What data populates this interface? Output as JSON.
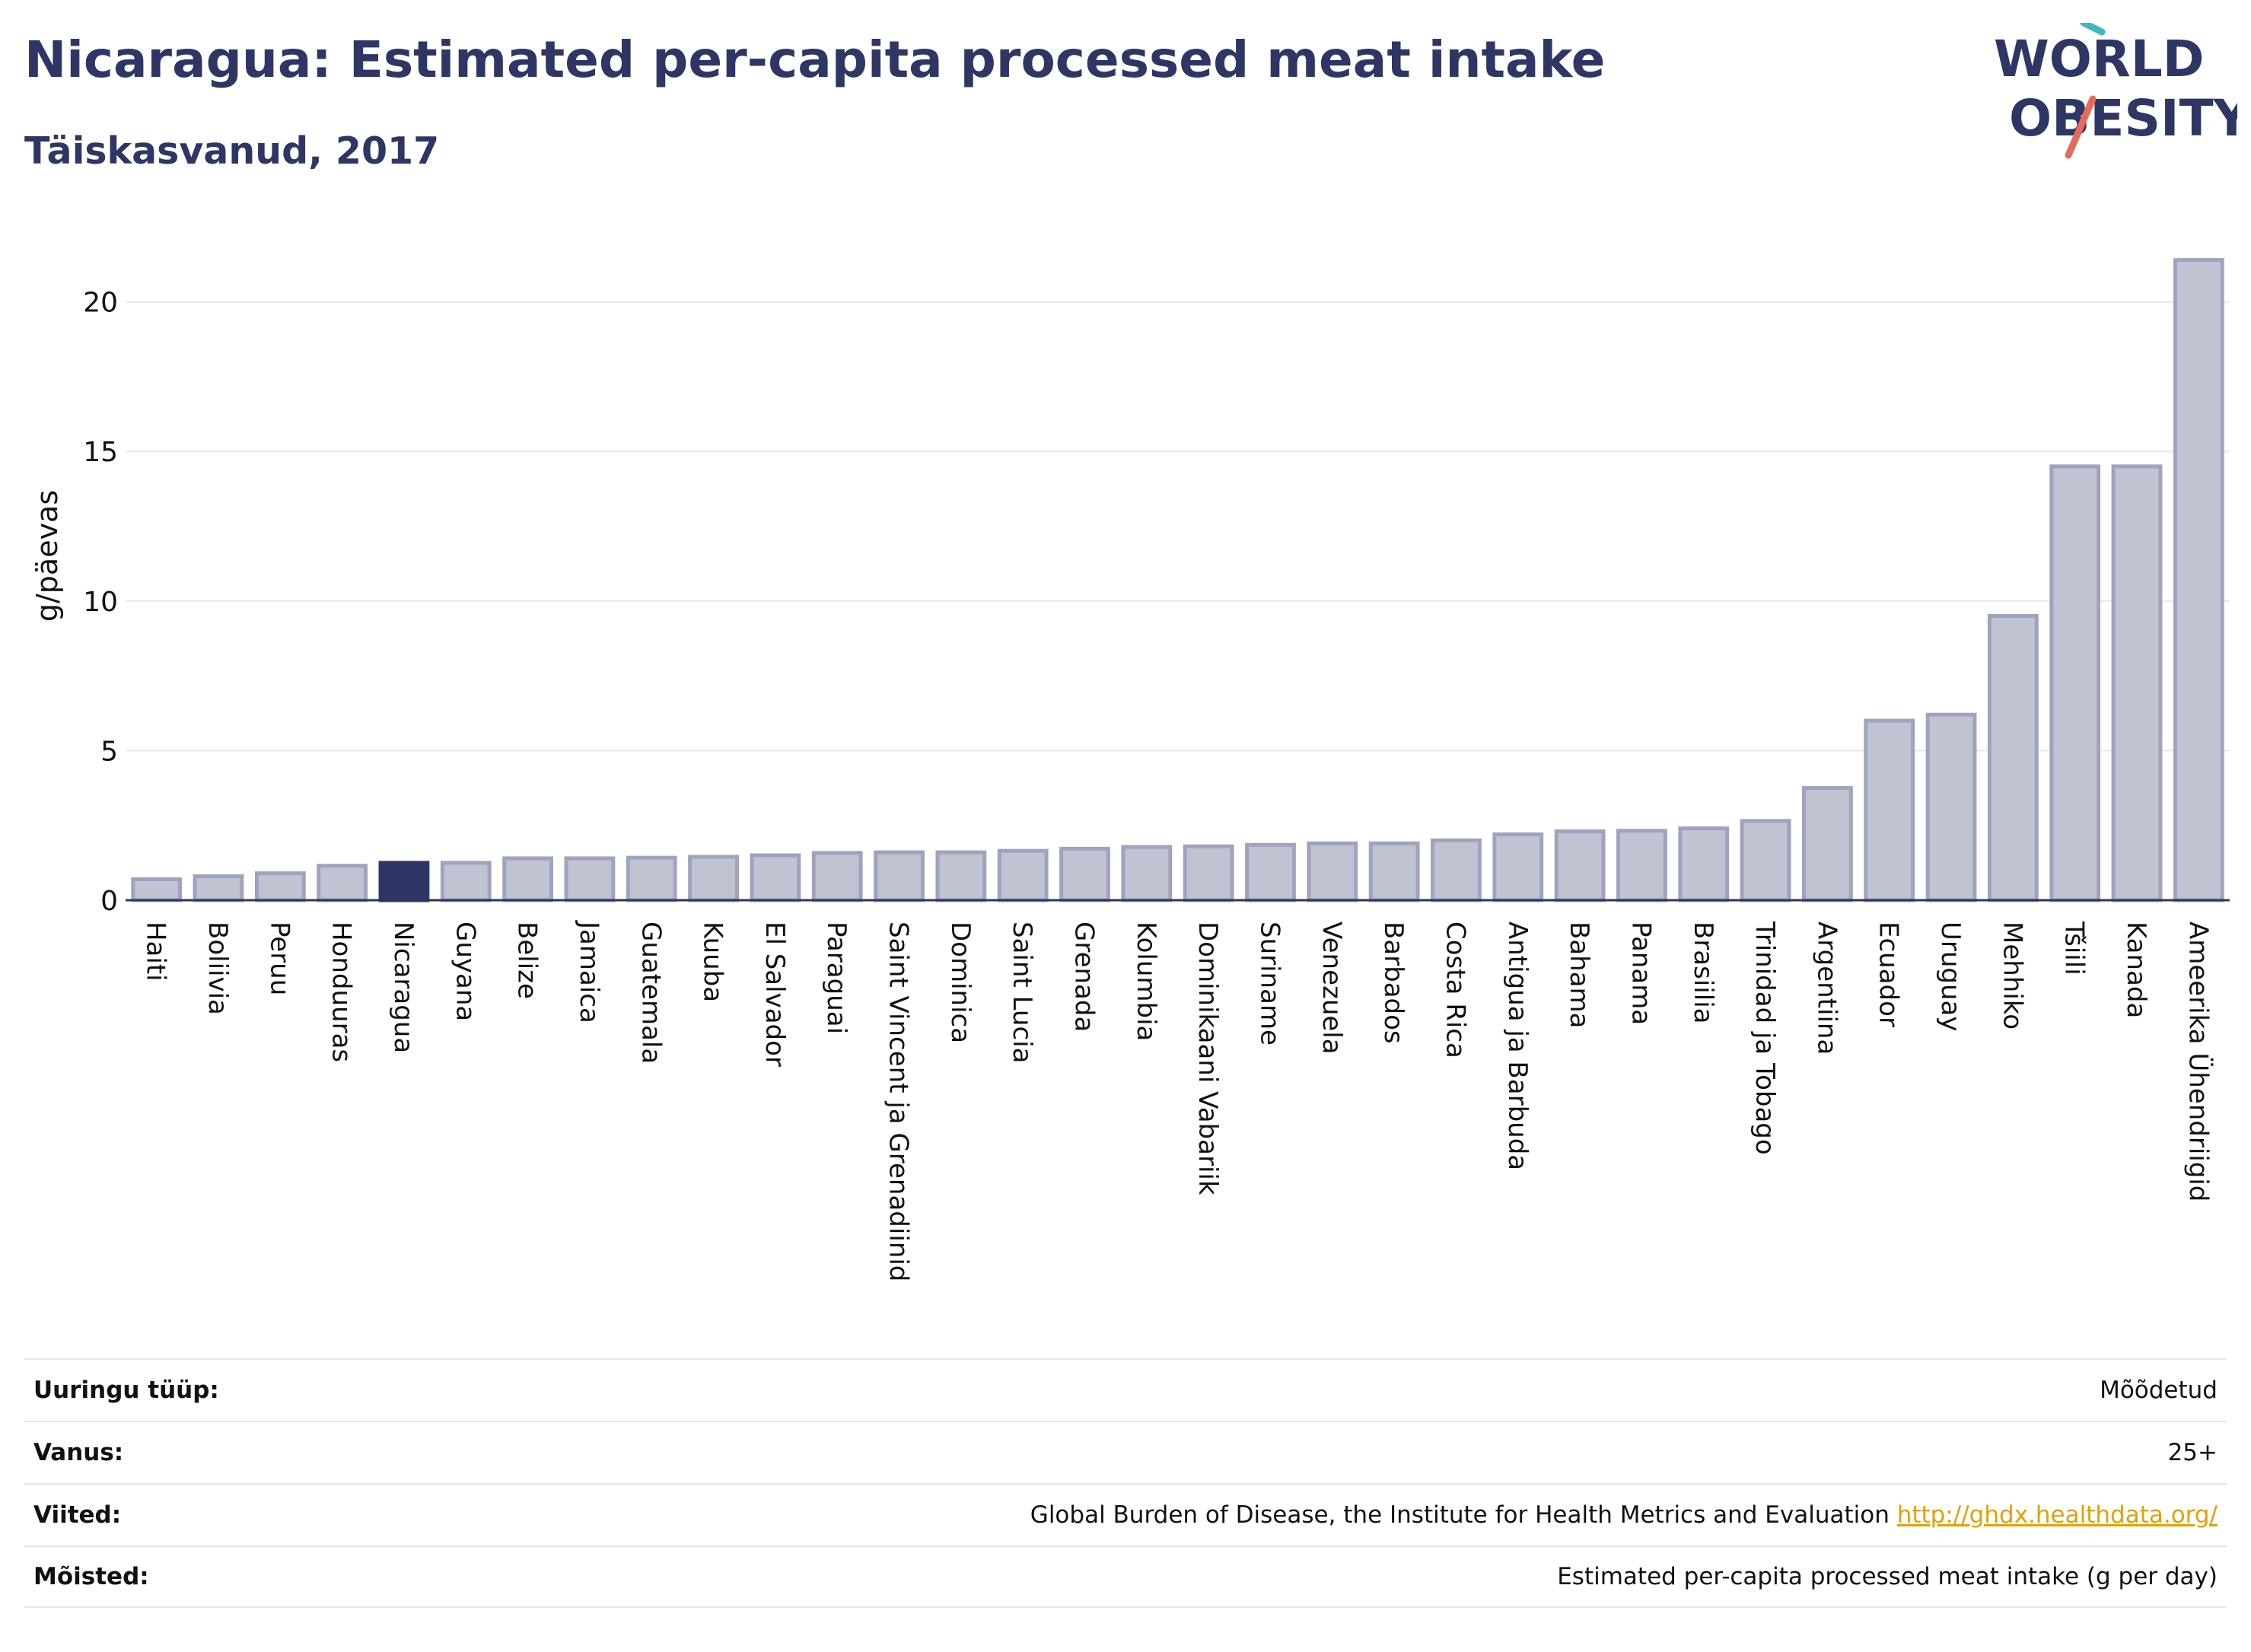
{
  "header": {
    "title": "Nicaragua: Estimated per-capita processed meat intake",
    "subtitle": "Täiskasvanud, 2017"
  },
  "logo": {
    "line1": "WORLD",
    "line2": "OBESITY"
  },
  "colors": {
    "bar": "#bfc3d2",
    "bar_stroke": "#9ea4bd",
    "highlight": "#2d3664",
    "axis": "#2d3664",
    "grid": "#e6e8ee"
  },
  "chart_data": {
    "type": "bar",
    "highlight": "Nicaragua",
    "ylabel": "g/päevas",
    "ylim": [
      0,
      22
    ],
    "yticks": [
      0,
      5,
      10,
      15,
      20
    ],
    "grid": true,
    "categories": [
      "Haiti",
      "Boliivia",
      "Peruu",
      "Honduuras",
      "Nicaragua",
      "Guyana",
      "Belize",
      "Jamaica",
      "Guatemala",
      "Kuuba",
      "El Salvador",
      "Paraguai",
      "Saint Vincent ja Grenadiinid",
      "Dominica",
      "Saint Lucia",
      "Grenada",
      "Kolumbia",
      "Dominikaani Vabariik",
      "Suriname",
      "Venezuela",
      "Barbados",
      "Costa Rica",
      "Antigua ja Barbuda",
      "Bahama",
      "Panama",
      "Brasiilia",
      "Trinidad ja Tobago",
      "Argentiina",
      "Ecuador",
      "Uruguay",
      "Mehhiko",
      "Tšiili",
      "Kanada",
      "Ameerika Ühendriigid"
    ],
    "values": [
      0.7,
      0.8,
      0.9,
      1.15,
      1.25,
      1.25,
      1.4,
      1.4,
      1.42,
      1.45,
      1.5,
      1.58,
      1.6,
      1.6,
      1.65,
      1.72,
      1.78,
      1.8,
      1.85,
      1.9,
      1.9,
      2.0,
      2.2,
      2.3,
      2.32,
      2.4,
      2.65,
      3.75,
      6.0,
      6.2,
      9.5,
      14.5,
      14.5,
      21.4
    ]
  },
  "info": [
    {
      "key": "Uuringu tüüp:",
      "value": "Mõõdetud"
    },
    {
      "key": "Vanus:",
      "value": "25+"
    },
    {
      "key": "Viited:",
      "value": "Global Burden of Disease, the Institute for Health Metrics and Evaluation",
      "link": "http://ghdx.healthdata.org/"
    },
    {
      "key": "Mõisted:",
      "value": "Estimated per-capita processed meat intake (g per day)"
    }
  ]
}
